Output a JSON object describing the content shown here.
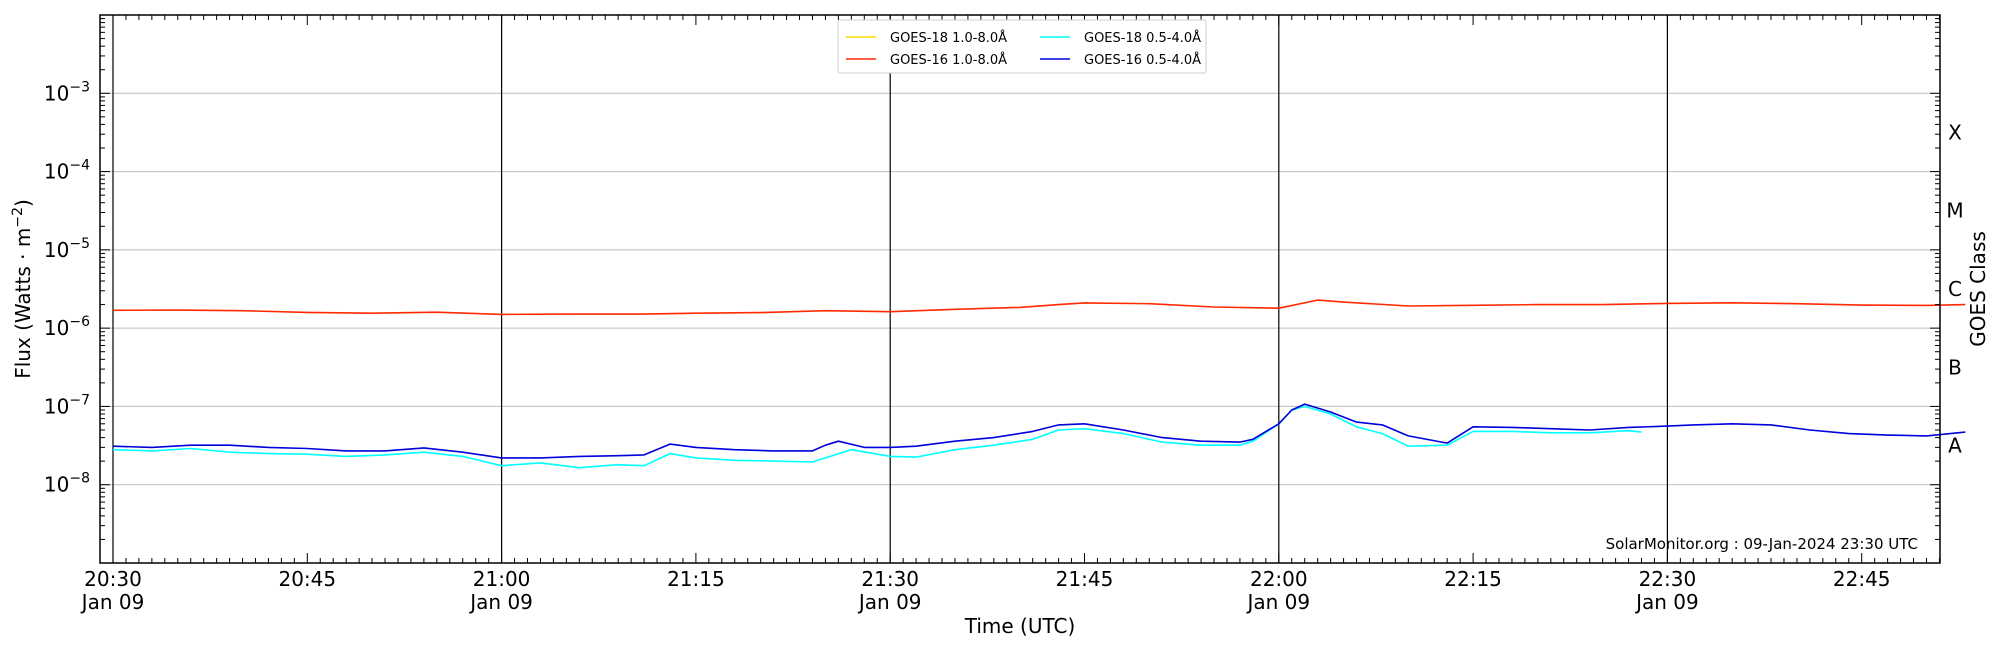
{
  "chart_data": {
    "type": "line",
    "xlabel": "Time (UTC)",
    "ylabel_main": "Flux (Watts · m",
    "ylabel_sup": "−2",
    "ylabel_close": ")",
    "right_label": "GOES Class",
    "y_scale": "log",
    "ylim": [
      1e-09,
      0.01
    ],
    "x_range_minutes": [
      0,
      143
    ],
    "x_origin": "20:30 UTC, 09-Jan-2024",
    "y_ticks": [
      {
        "value": 0.001,
        "base": "10",
        "exp": "−3"
      },
      {
        "value": 0.0001,
        "base": "10",
        "exp": "−4"
      },
      {
        "value": 1e-05,
        "base": "10",
        "exp": "−5"
      },
      {
        "value": 1e-06,
        "base": "10",
        "exp": "−6"
      },
      {
        "value": 1e-07,
        "base": "10",
        "exp": "−7"
      },
      {
        "value": 1e-08,
        "base": "10",
        "exp": "−8"
      }
    ],
    "x_ticks": [
      {
        "minute": 0,
        "line1": "20:30",
        "line2": "Jan 09"
      },
      {
        "minute": 15,
        "line1": "20:45",
        "line2": ""
      },
      {
        "minute": 30,
        "line1": "21:00",
        "line2": "Jan 09"
      },
      {
        "minute": 45,
        "line1": "21:15",
        "line2": ""
      },
      {
        "minute": 60,
        "line1": "21:30",
        "line2": "Jan 09"
      },
      {
        "minute": 75,
        "line1": "21:45",
        "line2": ""
      },
      {
        "minute": 90,
        "line1": "22:00",
        "line2": "Jan 09"
      },
      {
        "minute": 105,
        "line1": "22:15",
        "line2": ""
      },
      {
        "minute": 120,
        "line1": "22:30",
        "line2": "Jan 09"
      },
      {
        "minute": 135,
        "line1": "22:45",
        "line2": ""
      }
    ],
    "vertical_lines_minutes": [
      0,
      30,
      60,
      90,
      120
    ],
    "goes_classes": [
      {
        "label": "X",
        "value": 0.000316
      },
      {
        "label": "M",
        "value": 3.16e-05
      },
      {
        "label": "C",
        "value": 3.16e-06
      },
      {
        "label": "B",
        "value": 3.16e-07
      },
      {
        "label": "A",
        "value": 3.16e-08
      }
    ],
    "grid": true,
    "legend_position": "top-center",
    "series": [
      {
        "name": "GOES-18 1.0-8.0Å",
        "color": "#ffd700",
        "points": []
      },
      {
        "name": "GOES-16 1.0-8.0Å",
        "color": "#ff2a00",
        "points": [
          [
            0,
            1.69e-06
          ],
          [
            5,
            1.7e-06
          ],
          [
            10,
            1.67e-06
          ],
          [
            15,
            1.59e-06
          ],
          [
            20,
            1.55e-06
          ],
          [
            25,
            1.6e-06
          ],
          [
            30,
            1.5e-06
          ],
          [
            35,
            1.51e-06
          ],
          [
            41,
            1.51e-06
          ],
          [
            45,
            1.55e-06
          ],
          [
            50,
            1.58e-06
          ],
          [
            55,
            1.67e-06
          ],
          [
            60,
            1.62e-06
          ],
          [
            65,
            1.74e-06
          ],
          [
            70,
            1.84e-06
          ],
          [
            73,
            2e-06
          ],
          [
            75,
            2.1e-06
          ],
          [
            80,
            2.05e-06
          ],
          [
            85,
            1.86e-06
          ],
          [
            90,
            1.8e-06
          ],
          [
            93,
            2.28e-06
          ],
          [
            95,
            2.15e-06
          ],
          [
            100,
            1.92e-06
          ],
          [
            105,
            1.96e-06
          ],
          [
            110,
            2e-06
          ],
          [
            115,
            2e-06
          ],
          [
            120,
            2.07e-06
          ],
          [
            125,
            2.11e-06
          ],
          [
            130,
            2.05e-06
          ],
          [
            135,
            1.97e-06
          ],
          [
            140,
            1.95e-06
          ],
          [
            143,
            2e-06
          ]
        ]
      },
      {
        "name": "GOES-18 0.5-4.0Å",
        "color": "#00ffff",
        "points": [
          [
            0,
            2.8e-08
          ],
          [
            3,
            2.7e-08
          ],
          [
            6,
            2.9e-08
          ],
          [
            9,
            2.6e-08
          ],
          [
            12,
            2.5e-08
          ],
          [
            15,
            2.45e-08
          ],
          [
            18,
            2.3e-08
          ],
          [
            21,
            2.4e-08
          ],
          [
            24,
            2.6e-08
          ],
          [
            27,
            2.3e-08
          ],
          [
            30,
            1.75e-08
          ],
          [
            33,
            1.9e-08
          ],
          [
            36,
            1.65e-08
          ],
          [
            39,
            1.8e-08
          ],
          [
            41,
            1.75e-08
          ],
          [
            43,
            2.5e-08
          ],
          [
            45,
            2.2e-08
          ],
          [
            48,
            2.05e-08
          ],
          [
            51,
            2e-08
          ],
          [
            54,
            1.95e-08
          ],
          [
            57,
            2.8e-08
          ],
          [
            60,
            2.3e-08
          ],
          [
            62,
            2.25e-08
          ],
          [
            65,
            2.8e-08
          ],
          [
            68,
            3.2e-08
          ],
          [
            71,
            3.8e-08
          ],
          [
            73,
            5e-08
          ],
          [
            75,
            5.2e-08
          ],
          [
            78,
            4.5e-08
          ],
          [
            81,
            3.5e-08
          ],
          [
            84,
            3.2e-08
          ],
          [
            87,
            3.2e-08
          ],
          [
            88,
            3.6e-08
          ],
          [
            90,
            6e-08
          ],
          [
            91,
            9e-08
          ],
          [
            92,
            1e-07
          ],
          [
            94,
            8e-08
          ],
          [
            96,
            5.5e-08
          ],
          [
            98,
            4.5e-08
          ],
          [
            100,
            3.1e-08
          ],
          [
            103,
            3.2e-08
          ],
          [
            105,
            4.8e-08
          ],
          [
            108,
            4.8e-08
          ],
          [
            111,
            4.6e-08
          ],
          [
            114,
            4.6e-08
          ],
          [
            117,
            4.9e-08
          ],
          [
            118,
            4.7e-08
          ]
        ]
      },
      {
        "name": "GOES-16 0.5-4.0Å",
        "color": "#0000dd",
        "points": [
          [
            0,
            3.1e-08
          ],
          [
            3,
            3e-08
          ],
          [
            6,
            3.2e-08
          ],
          [
            9,
            3.2e-08
          ],
          [
            12,
            3e-08
          ],
          [
            15,
            2.9e-08
          ],
          [
            18,
            2.7e-08
          ],
          [
            21,
            2.7e-08
          ],
          [
            24,
            2.95e-08
          ],
          [
            27,
            2.6e-08
          ],
          [
            30,
            2.2e-08
          ],
          [
            33,
            2.2e-08
          ],
          [
            36,
            2.3e-08
          ],
          [
            39,
            2.35e-08
          ],
          [
            41,
            2.4e-08
          ],
          [
            43,
            3.3e-08
          ],
          [
            45,
            3e-08
          ],
          [
            48,
            2.8e-08
          ],
          [
            51,
            2.7e-08
          ],
          [
            54,
            2.7e-08
          ],
          [
            55,
            3.2e-08
          ],
          [
            56,
            3.6e-08
          ],
          [
            58,
            3e-08
          ],
          [
            60,
            3e-08
          ],
          [
            62,
            3.1e-08
          ],
          [
            65,
            3.6e-08
          ],
          [
            68,
            4e-08
          ],
          [
            71,
            4.8e-08
          ],
          [
            73,
            5.8e-08
          ],
          [
            75,
            6e-08
          ],
          [
            78,
            5e-08
          ],
          [
            81,
            4e-08
          ],
          [
            84,
            3.6e-08
          ],
          [
            87,
            3.5e-08
          ],
          [
            88,
            3.8e-08
          ],
          [
            90,
            6e-08
          ],
          [
            91,
            9e-08
          ],
          [
            92,
            1.07e-07
          ],
          [
            94,
            8.5e-08
          ],
          [
            96,
            6.3e-08
          ],
          [
            98,
            5.8e-08
          ],
          [
            100,
            4.2e-08
          ],
          [
            103,
            3.4e-08
          ],
          [
            105,
            5.5e-08
          ],
          [
            108,
            5.4e-08
          ],
          [
            111,
            5.2e-08
          ],
          [
            114,
            5e-08
          ],
          [
            117,
            5.4e-08
          ],
          [
            120,
            5.6e-08
          ],
          [
            122,
            5.8e-08
          ],
          [
            125,
            6e-08
          ],
          [
            128,
            5.8e-08
          ],
          [
            131,
            5e-08
          ],
          [
            134,
            4.5e-08
          ],
          [
            137,
            4.3e-08
          ],
          [
            140,
            4.2e-08
          ],
          [
            143,
            4.7e-08
          ]
        ]
      }
    ]
  },
  "credit": "SolarMonitor.org : 09-Jan-2024 23:30 UTC"
}
